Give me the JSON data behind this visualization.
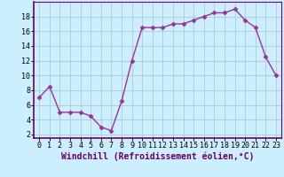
{
  "x": [
    0,
    1,
    2,
    3,
    4,
    5,
    6,
    7,
    8,
    9,
    10,
    11,
    12,
    13,
    14,
    15,
    16,
    17,
    18,
    19,
    20,
    21,
    22,
    23
  ],
  "y": [
    7.0,
    8.5,
    5.0,
    5.0,
    5.0,
    4.5,
    3.0,
    2.5,
    6.5,
    12.0,
    16.5,
    16.5,
    16.5,
    17.0,
    17.0,
    17.5,
    18.0,
    18.5,
    18.5,
    19.0,
    17.5,
    16.5,
    12.5,
    10.0
  ],
  "line_color": "#993399",
  "marker": "D",
  "marker_size": 2.5,
  "bg_color": "#cceeff",
  "grid_color": "#aacccc",
  "xlabel": "Windchill (Refroidissement éolien,°C)",
  "xlabel_fontsize": 7,
  "ylabel_ticks": [
    2,
    4,
    6,
    8,
    10,
    12,
    14,
    16,
    18
  ],
  "xtick_labels": [
    "0",
    "1",
    "2",
    "3",
    "4",
    "5",
    "6",
    "7",
    "8",
    "9",
    "10",
    "11",
    "12",
    "13",
    "14",
    "15",
    "16",
    "17",
    "18",
    "19",
    "20",
    "21",
    "22",
    "23"
  ],
  "ylim": [
    1.5,
    20.0
  ],
  "xlim": [
    -0.5,
    23.5
  ],
  "tick_fontsize": 6.0,
  "line_width": 1.0,
  "spine_color": "#7a007a"
}
